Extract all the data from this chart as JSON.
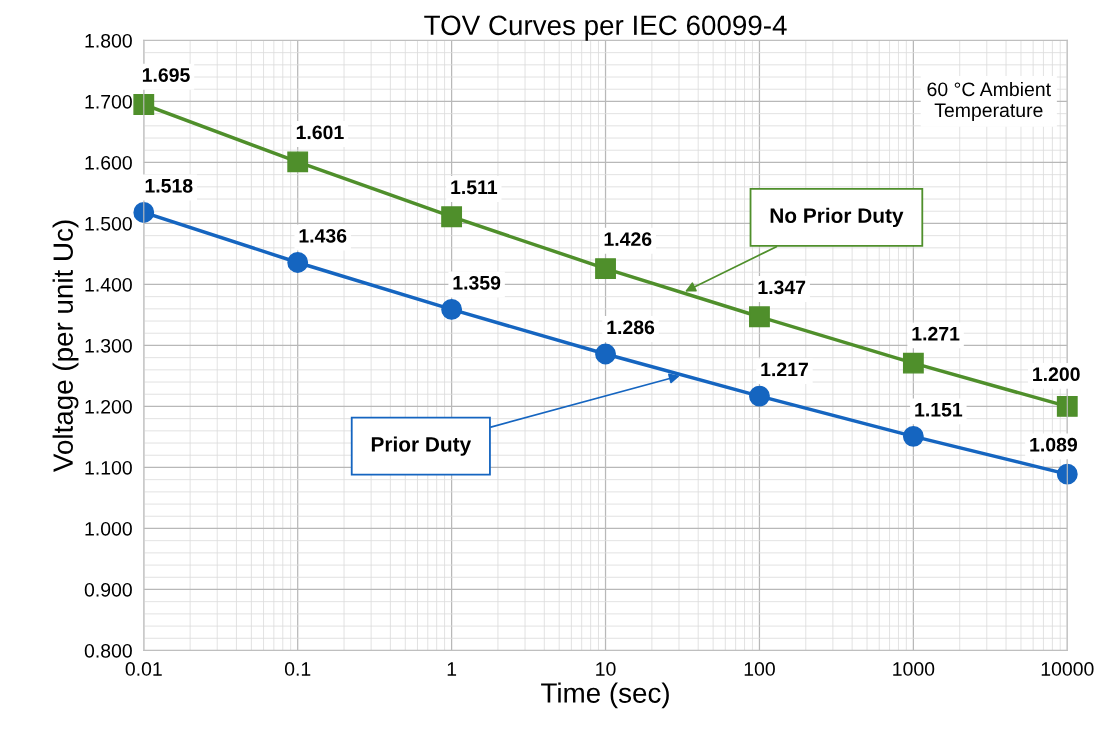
{
  "chart_data": {
    "type": "line",
    "title": "TOV Curves per IEC 60099-4",
    "xlabel": "Time (sec)",
    "ylabel": "Voltage (per unit Uc)",
    "x": [
      0.01,
      0.1,
      1,
      10,
      100,
      1000,
      10000
    ],
    "series": [
      {
        "name": "No Prior Duty",
        "color": "#4f8f2b",
        "marker": "square",
        "values": [
          1.695,
          1.601,
          1.511,
          1.426,
          1.347,
          1.271,
          1.2
        ],
        "value_labels": [
          "1.695",
          "1.601",
          "1.511",
          "1.426",
          "1.347",
          "1.271",
          "1.200"
        ]
      },
      {
        "name": "Prior Duty",
        "color": "#1565c0",
        "marker": "circle",
        "values": [
          1.518,
          1.436,
          1.359,
          1.286,
          1.217,
          1.151,
          1.089
        ],
        "value_labels": [
          "1.518",
          "1.436",
          "1.359",
          "1.286",
          "1.217",
          "1.151",
          "1.089"
        ]
      }
    ],
    "log": "x",
    "xlim": [
      0.01,
      10000
    ],
    "xticks": [
      {
        "value": 0.01,
        "label": "0.01"
      },
      {
        "value": 0.1,
        "label": "0.1"
      },
      1,
      10,
      100,
      1000,
      10000
    ],
    "ylim": [
      0.8,
      1.8
    ],
    "yticks": [
      {
        "value": 0.8,
        "label": "0.800"
      },
      {
        "value": 0.9,
        "label": "0.900"
      },
      {
        "value": 1.0,
        "label": "1.000"
      },
      {
        "value": 1.1,
        "label": "1.100"
      },
      {
        "value": 1.2,
        "label": "1.200"
      },
      {
        "value": 1.3,
        "label": "1.300"
      },
      {
        "value": 1.4,
        "label": "1.400"
      },
      {
        "value": 1.5,
        "label": "1.500"
      },
      {
        "value": 1.6,
        "label": "1.600"
      },
      {
        "value": 1.7,
        "label": "1.700"
      },
      {
        "value": 1.8,
        "label": "1.800"
      }
    ],
    "grid": true,
    "line_style": "solid",
    "legend": false,
    "annotations": [
      "60 °C Ambient\nTemperature"
    ]
  }
}
